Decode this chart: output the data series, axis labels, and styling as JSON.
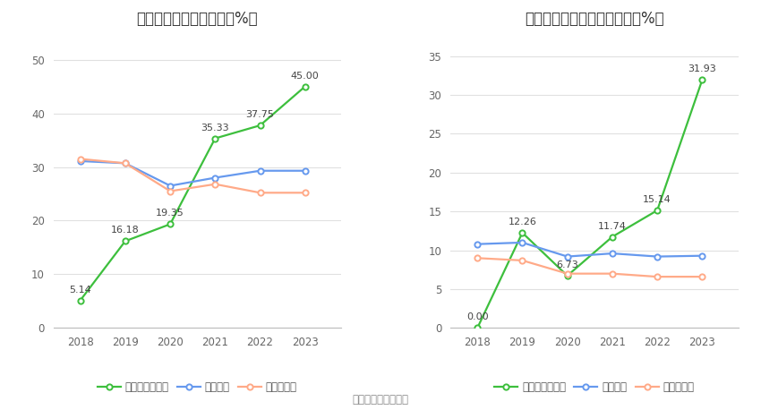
{
  "left_title": "近年来资产负债率情况（%）",
  "right_title": "近年来有息资产负债率情况（%）",
  "footer": "数据来源：恒生聚源",
  "years": [
    2018,
    2019,
    2020,
    2021,
    2022,
    2023
  ],
  "left": {
    "company": [
      5.14,
      16.18,
      19.35,
      35.33,
      37.75,
      45.0
    ],
    "industry_avg": [
      31.1,
      30.7,
      26.5,
      28.0,
      29.3,
      29.3
    ],
    "industry_median": [
      31.5,
      30.7,
      25.5,
      26.8,
      25.2,
      25.2
    ],
    "ylim": [
      0,
      55
    ],
    "yticks": [
      0,
      10,
      20,
      30,
      40,
      50
    ],
    "labels": [
      "5.14",
      "16.18",
      "19.35",
      "35.33",
      "37.75",
      "45.00"
    ],
    "legend": [
      "公司资产负债率",
      "行业均値",
      "行业中位数"
    ]
  },
  "right": {
    "company": [
      0.0,
      12.26,
      6.73,
      11.74,
      15.14,
      31.93
    ],
    "industry_avg": [
      10.8,
      11.0,
      9.2,
      9.6,
      9.2,
      9.3
    ],
    "industry_median": [
      9.0,
      8.7,
      7.0,
      7.0,
      6.6,
      6.6
    ],
    "ylim": [
      0,
      38
    ],
    "yticks": [
      0,
      5,
      10,
      15,
      20,
      25,
      30,
      35
    ],
    "labels": [
      "0.00",
      "12.26",
      "6.73",
      "11.74",
      "15.14",
      "31.93"
    ],
    "legend": [
      "有息资产负债率",
      "行业均値",
      "行业中位数"
    ]
  },
  "colors": {
    "company": "#3dbf3d",
    "industry_avg": "#6699ee",
    "industry_median": "#ffaa88"
  },
  "bg_color": "#ffffff",
  "grid_color": "#e0e0e0",
  "title_fontsize": 12,
  "label_fontsize": 8,
  "tick_fontsize": 8.5,
  "legend_fontsize": 8.5,
  "footer_fontsize": 8.5
}
